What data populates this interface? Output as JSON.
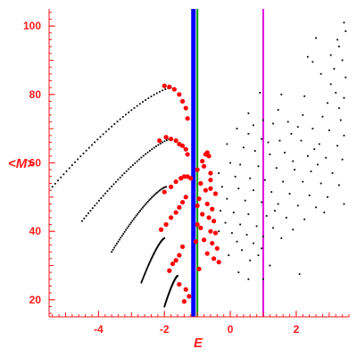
{
  "chart_data": {
    "type": "scatter",
    "title": "",
    "xlabel": "E",
    "ylabel": "<M>",
    "xlim": [
      -5.5,
      3.6
    ],
    "ylim": [
      15,
      105
    ],
    "xticks": [
      -4,
      -2,
      0,
      2
    ],
    "yticks": [
      20,
      40,
      60,
      80,
      100
    ],
    "xtick_labels": [
      "-4",
      "-2",
      "0",
      "2"
    ],
    "ytick_labels": [
      "20",
      "40",
      "60",
      "80",
      "100"
    ],
    "grid": false,
    "legend": "none",
    "colors": {
      "axis": "#ff1a1a",
      "red_points": "#ff0000",
      "black_points": "#000000",
      "blue_line": "#0000ff",
      "green_line": "#00a000",
      "magenta_line": "#e000e0"
    },
    "vertical_lines": [
      {
        "x": -1.12,
        "color": "#0000ff",
        "width_style": "thick"
      },
      {
        "x": -1.0,
        "color": "#00a000",
        "width_style": "thin"
      },
      {
        "x": 1.0,
        "color": "#e000e0",
        "width_style": "thin"
      }
    ],
    "black_curves": [
      {
        "x_start": -5.4,
        "y_start": 53,
        "x_end": -1.8,
        "y_end": 82,
        "peak_x": -1.95,
        "peak_y": 82
      },
      {
        "x_start": -4.5,
        "y_start": 43,
        "x_end": -1.8,
        "y_end": 67,
        "peak_x": -1.8,
        "peak_y": 67
      },
      {
        "x_start": -3.6,
        "y_start": 34,
        "x_end": -1.95,
        "y_end": 53,
        "peak_x": -1.95,
        "peak_y": 53
      },
      {
        "x_start": -2.7,
        "y_start": 25,
        "x_end": -2.0,
        "y_end": 38,
        "peak_x": -2.0,
        "peak_y": 38
      },
      {
        "x_start": -2.0,
        "y_start": 18,
        "x_end": -1.6,
        "y_end": 27,
        "peak_x": -1.6,
        "peak_y": 27
      }
    ],
    "red_points": [
      [
        -2.0,
        82.5
      ],
      [
        -1.85,
        82.2
      ],
      [
        -1.7,
        81.5
      ],
      [
        -1.55,
        80.0
      ],
      [
        -1.45,
        78.0
      ],
      [
        -1.35,
        76.0
      ],
      [
        -1.3,
        73.0
      ],
      [
        -2.15,
        66.5
      ],
      [
        -1.95,
        67.5
      ],
      [
        -1.8,
        67.0
      ],
      [
        -1.65,
        66.5
      ],
      [
        -1.55,
        65.5
      ],
      [
        -1.45,
        65.0
      ],
      [
        -1.35,
        64.0
      ],
      [
        -1.3,
        62.5
      ],
      [
        -2.0,
        51.5
      ],
      [
        -1.8,
        53.0
      ],
      [
        -1.65,
        54.5
      ],
      [
        -1.5,
        55.5
      ],
      [
        -1.4,
        56.0
      ],
      [
        -1.3,
        56.0
      ],
      [
        -1.2,
        55.5
      ],
      [
        -2.1,
        40.5
      ],
      [
        -1.95,
        42.0
      ],
      [
        -1.8,
        44.0
      ],
      [
        -1.65,
        45.5
      ],
      [
        -1.55,
        47.0
      ],
      [
        -1.45,
        48.5
      ],
      [
        -1.35,
        50.0
      ],
      [
        -1.85,
        28.5
      ],
      [
        -1.75,
        30.5
      ],
      [
        -1.65,
        31.5
      ],
      [
        -1.55,
        33.0
      ],
      [
        -1.45,
        35.5
      ],
      [
        -0.75,
        62.5
      ],
      [
        -0.7,
        63.0
      ],
      [
        -0.65,
        62.0
      ],
      [
        -0.85,
        60.5
      ],
      [
        -0.8,
        59.0
      ],
      [
        -0.6,
        57.0
      ],
      [
        -0.9,
        54.0
      ],
      [
        -0.75,
        52.0
      ],
      [
        -0.6,
        52.5
      ],
      [
        -0.95,
        49.5
      ],
      [
        -0.7,
        48.0
      ],
      [
        -0.55,
        46.5
      ],
      [
        -0.85,
        45.0
      ],
      [
        -0.65,
        44.0
      ],
      [
        -0.5,
        43.0
      ],
      [
        -0.9,
        41.0
      ],
      [
        -0.6,
        40.0
      ],
      [
        -0.45,
        39.5
      ],
      [
        -0.8,
        37.5
      ],
      [
        -0.55,
        36.5
      ],
      [
        -0.4,
        35.0
      ],
      [
        -0.7,
        33.5
      ],
      [
        -0.5,
        32.0
      ],
      [
        -0.35,
        31.0
      ],
      [
        -1.0,
        58.0
      ],
      [
        -1.0,
        47.5
      ],
      [
        -1.0,
        42.0
      ],
      [
        -1.05,
        37.0
      ],
      [
        -0.95,
        29.0
      ],
      [
        -1.55,
        24.5
      ],
      [
        -1.35,
        23.0
      ],
      [
        -1.25,
        21.0
      ],
      [
        -1.4,
        19.5
      ],
      [
        -0.6,
        55.0
      ],
      [
        -0.45,
        51.0
      ]
    ],
    "black_cloud_region": {
      "x_range": [
        -0.4,
        3.6
      ],
      "y_range": [
        28,
        103
      ],
      "trend_y_at_x_min": 40,
      "trend_y_at_x_max": 68
    },
    "black_cloud_points": [
      [
        3.45,
        101.0
      ],
      [
        3.25,
        96.0
      ],
      [
        2.6,
        96.5
      ],
      [
        3.5,
        98.5
      ],
      [
        3.3,
        94.0
      ],
      [
        2.35,
        91.0
      ],
      [
        2.5,
        89.5
      ],
      [
        3.05,
        91.5
      ],
      [
        3.4,
        90.0
      ],
      [
        3.15,
        87.5
      ],
      [
        3.5,
        85.0
      ],
      [
        0.9,
        80.5
      ],
      [
        1.55,
        80.0
      ],
      [
        3.2,
        80.5
      ],
      [
        3.45,
        79.0
      ],
      [
        2.95,
        77.5
      ],
      [
        3.3,
        76.0
      ],
      [
        2.2,
        74.0
      ],
      [
        2.8,
        73.5
      ],
      [
        1.0,
        72.5
      ],
      [
        1.3,
        71.5
      ],
      [
        1.75,
        72.0
      ],
      [
        2.05,
        70.5
      ],
      [
        2.5,
        70.0
      ],
      [
        3.0,
        69.5
      ],
      [
        3.45,
        68.0
      ],
      [
        0.55,
        68.5
      ],
      [
        0.95,
        67.0
      ],
      [
        1.5,
        66.5
      ],
      [
        2.15,
        66.5
      ],
      [
        2.7,
        65.5
      ],
      [
        3.25,
        65.0
      ],
      [
        -0.1,
        65.5
      ],
      [
        0.4,
        64.5
      ],
      [
        0.75,
        63.5
      ],
      [
        1.2,
        62.5
      ],
      [
        1.65,
        63.0
      ],
      [
        2.35,
        62.0
      ],
      [
        2.9,
        61.5
      ],
      [
        3.4,
        61.0
      ],
      [
        0.0,
        60.0
      ],
      [
        0.3,
        59.5
      ],
      [
        0.85,
        59.0
      ],
      [
        1.4,
        58.5
      ],
      [
        1.95,
        58.0
      ],
      [
        2.45,
        57.5
      ],
      [
        3.1,
        57.0
      ],
      [
        -0.35,
        57.0
      ],
      [
        0.15,
        56.0
      ],
      [
        0.6,
        55.5
      ],
      [
        1.05,
        55.0
      ],
      [
        1.6,
        54.5
      ],
      [
        2.2,
        54.5
      ],
      [
        2.75,
        54.0
      ],
      [
        3.3,
        53.5
      ],
      [
        -0.25,
        53.0
      ],
      [
        0.25,
        52.5
      ],
      [
        0.7,
        52.0
      ],
      [
        1.25,
        51.5
      ],
      [
        1.8,
        51.0
      ],
      [
        2.4,
        50.5
      ],
      [
        2.95,
        50.0
      ],
      [
        -0.1,
        49.5
      ],
      [
        0.45,
        49.0
      ],
      [
        0.95,
        48.5
      ],
      [
        1.45,
        48.0
      ],
      [
        2.05,
        47.5
      ],
      [
        2.6,
        47.0
      ],
      [
        3.45,
        48.0
      ],
      [
        -0.3,
        46.0
      ],
      [
        0.1,
        45.5
      ],
      [
        0.55,
        45.0
      ],
      [
        1.1,
        44.5
      ],
      [
        1.7,
        44.0
      ],
      [
        2.25,
        43.5
      ],
      [
        -0.15,
        42.5
      ],
      [
        0.3,
        42.0
      ],
      [
        0.8,
        41.5
      ],
      [
        1.3,
        41.0
      ],
      [
        1.9,
        40.5
      ],
      [
        -0.35,
        40.0
      ],
      [
        0.05,
        39.5
      ],
      [
        0.5,
        39.0
      ],
      [
        1.0,
        38.5
      ],
      [
        1.55,
        38.0
      ],
      [
        0.2,
        37.0
      ],
      [
        0.7,
        36.5
      ],
      [
        0.35,
        34.5
      ],
      [
        0.95,
        35.0
      ],
      [
        -0.05,
        33.0
      ],
      [
        0.6,
        31.5
      ],
      [
        1.2,
        30.0
      ],
      [
        0.55,
        26.0
      ],
      [
        1.0,
        26.0
      ],
      [
        2.1,
        27.5
      ],
      [
        0.25,
        28.0
      ],
      [
        1.15,
        66.0
      ],
      [
        1.85,
        68.5
      ],
      [
        2.55,
        64.0
      ],
      [
        0.7,
        71.0
      ],
      [
        3.05,
        83.0
      ],
      [
        2.75,
        86.0
      ],
      [
        2.25,
        79.5
      ],
      [
        1.45,
        75.5
      ],
      [
        0.2,
        70.0
      ],
      [
        0.55,
        74.5
      ],
      [
        1.9,
        60.5
      ],
      [
        2.65,
        59.5
      ],
      [
        3.35,
        72.5
      ],
      [
        1.35,
        46.0
      ],
      [
        2.85,
        45.5
      ],
      [
        0.85,
        33.0
      ]
    ]
  }
}
